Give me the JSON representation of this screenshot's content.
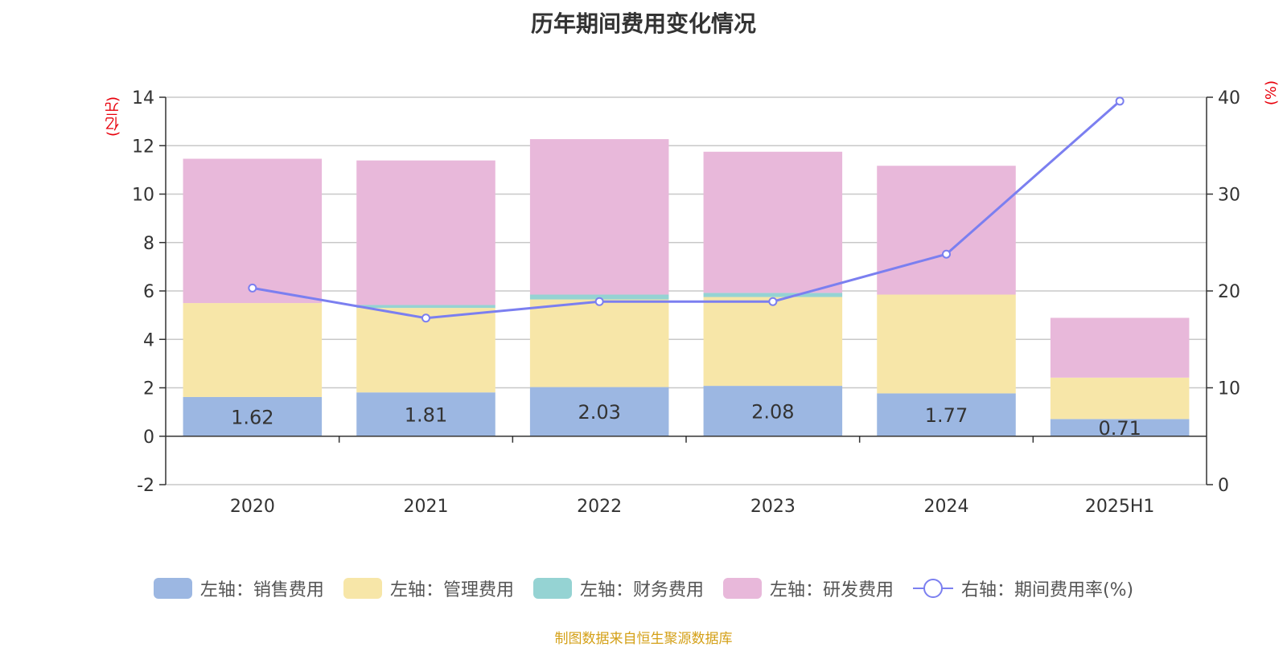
{
  "chart_data": {
    "type": "bar",
    "title": "历年期间费用变化情况",
    "categories": [
      "2020",
      "2021",
      "2022",
      "2023",
      "2024",
      "2025H1"
    ],
    "left_axis": {
      "unit": "(亿元)",
      "ylim": [
        -2,
        14
      ],
      "ticks": [
        "-2",
        "0",
        "2",
        "4",
        "6",
        "8",
        "10",
        "12",
        "14"
      ]
    },
    "right_axis": {
      "unit": "(%)",
      "ylim": [
        0,
        40
      ],
      "ticks": [
        "0",
        "10",
        "20",
        "30",
        "40"
      ]
    },
    "series": [
      {
        "name": "左轴：销售费用",
        "color": "#9cb7e2",
        "values": [
          1.62,
          1.81,
          2.03,
          2.08,
          1.77,
          0.71
        ],
        "labels": [
          "1.62",
          "1.81",
          "2.03",
          "2.08",
          "1.77",
          "0.71"
        ]
      },
      {
        "name": "左轴：管理费用",
        "color": "#f7e6a8",
        "values": [
          3.88,
          3.49,
          3.62,
          3.67,
          4.08,
          1.71
        ]
      },
      {
        "name": "左轴：财务费用",
        "color": "#95d3d3",
        "values": [
          0.0,
          0.12,
          0.2,
          0.17,
          0.0,
          0.0
        ]
      },
      {
        "name": "左轴：研发费用",
        "color": "#e8b8da",
        "values": [
          5.96,
          5.97,
          6.42,
          5.83,
          5.32,
          2.47
        ]
      }
    ],
    "line_series": {
      "name": "右轴：期间费用率(%)",
      "color": "#7b7ff0",
      "values": [
        20.3,
        17.2,
        18.9,
        18.9,
        23.8,
        39.6
      ]
    },
    "grid": true,
    "legend_position": "bottom"
  },
  "source_text": "制图数据来自恒生聚源数据库"
}
